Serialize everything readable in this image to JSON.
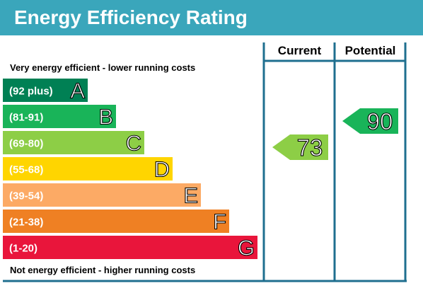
{
  "title": "Energy Efficiency Rating",
  "top_caption": "Very energy efficient - lower running costs",
  "bottom_caption": "Not energy efficient - higher running costs",
  "columns": {
    "current": "Current",
    "potential": "Potential"
  },
  "chart_data": {
    "type": "bar",
    "bands": [
      {
        "letter": "A",
        "range": "(92 plus)",
        "color": "#008054"
      },
      {
        "letter": "B",
        "range": "(81-91)",
        "color": "#19b459"
      },
      {
        "letter": "C",
        "range": "(69-80)",
        "color": "#8dce46"
      },
      {
        "letter": "D",
        "range": "(55-68)",
        "color": "#ffd500"
      },
      {
        "letter": "E",
        "range": "(39-54)",
        "color": "#fcaa65"
      },
      {
        "letter": "F",
        "range": "(21-38)",
        "color": "#ef8023"
      },
      {
        "letter": "G",
        "range": "(1-20)",
        "color": "#e9153b"
      }
    ],
    "current": {
      "value": "73",
      "band": "C",
      "color": "#8dce46"
    },
    "potential": {
      "value": "90",
      "band": "B",
      "color": "#19b459"
    }
  },
  "colors": {
    "header": "#3aa6bb",
    "frame": "#1f6f8f"
  }
}
